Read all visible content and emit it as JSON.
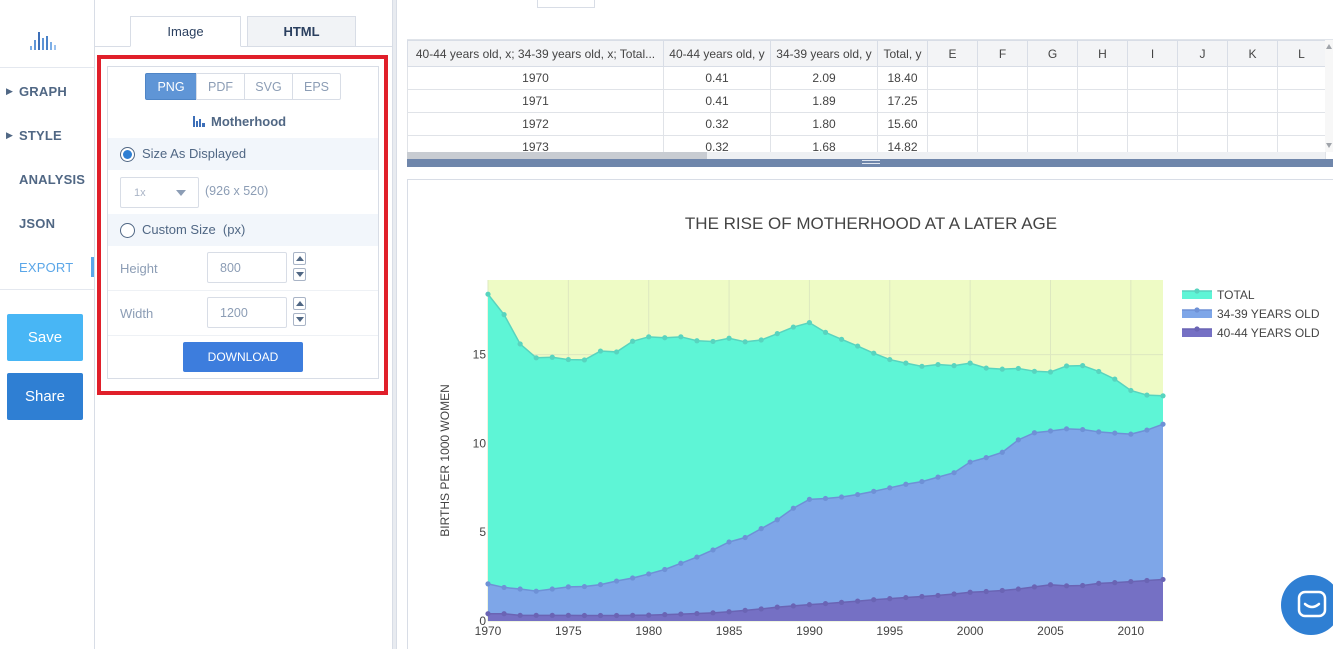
{
  "nav": {
    "items": [
      {
        "label": "GRAPH",
        "caret": "▶"
      },
      {
        "label": "STYLE",
        "caret": "▶"
      },
      {
        "label": "ANALYSIS"
      },
      {
        "label": "JSON"
      },
      {
        "label": "EXPORT"
      }
    ],
    "save_label": "Save",
    "share_label": "Share",
    "logo_icon": "bar-chart-logo-icon"
  },
  "export": {
    "tabs": [
      "Image",
      "HTML"
    ],
    "formats": [
      "PNG",
      "PDF",
      "SVG",
      "EPS"
    ],
    "selected_format": "PNG",
    "figure_name": "Motherhood",
    "size_as_displayed_label": "Size As Displayed",
    "scale_value": "1x",
    "display_dims": "(926 x 520)",
    "custom_size_label": "Custom Size  (px)",
    "height_label": "Height",
    "height_value": "800",
    "width_label": "Width",
    "width_value": "1200",
    "download_label": "DOWNLOAD",
    "highlight_color": "#e01f2a"
  },
  "grid": {
    "headers": [
      "40-44 years old, x; 34-39 years old, x; Total...",
      "40-44 years old, y",
      "34-39 years old, y",
      "Total, y",
      "E",
      "F",
      "G",
      "H",
      "I",
      "J",
      "K",
      "L"
    ],
    "rows": [
      [
        "1970",
        "0.41",
        "2.09",
        "18.40"
      ],
      [
        "1971",
        "0.41",
        "1.89",
        "17.25"
      ],
      [
        "1972",
        "0.32",
        "1.80",
        "15.60"
      ],
      [
        "1973",
        "0.32",
        "1.68",
        "14.82"
      ]
    ]
  },
  "chart_data": {
    "type": "area",
    "title": "THE RISE OF MOTHERHOOD AT A LATER AGE",
    "ylabel": "BIRTHS PER 1000 WOMEN",
    "xlabel": "",
    "xlim": [
      1970,
      2012
    ],
    "ylim": [
      0,
      19.2
    ],
    "x_ticks": [
      1970,
      1975,
      1980,
      1985,
      1990,
      1995,
      2000,
      2005,
      2010
    ],
    "y_ticks": [
      0,
      5,
      10,
      15
    ],
    "plot_bg": "#eefbc5",
    "legend_position": "top-right",
    "x": [
      1970,
      1971,
      1972,
      1973,
      1974,
      1975,
      1976,
      1977,
      1978,
      1979,
      1980,
      1981,
      1982,
      1983,
      1984,
      1985,
      1986,
      1987,
      1988,
      1989,
      1990,
      1991,
      1992,
      1993,
      1994,
      1995,
      1996,
      1997,
      1998,
      1999,
      2000,
      2001,
      2002,
      2003,
      2004,
      2005,
      2006,
      2007,
      2008,
      2009,
      2010,
      2011,
      2012
    ],
    "series": [
      {
        "name": "40-44 YEARS OLD",
        "color": "#7570c4",
        "values": [
          0.41,
          0.41,
          0.32,
          0.32,
          0.32,
          0.32,
          0.31,
          0.31,
          0.31,
          0.32,
          0.33,
          0.36,
          0.39,
          0.42,
          0.46,
          0.52,
          0.6,
          0.68,
          0.78,
          0.85,
          0.92,
          0.98,
          1.05,
          1.12,
          1.2,
          1.26,
          1.32,
          1.38,
          1.44,
          1.52,
          1.62,
          1.66,
          1.72,
          1.8,
          1.92,
          2.04,
          1.98,
          2.0,
          2.12,
          2.16,
          2.22,
          2.28,
          2.34
        ]
      },
      {
        "name": "34-39 YEARS OLD",
        "color": "#7ea6e8",
        "values": [
          2.09,
          1.89,
          1.8,
          1.68,
          1.8,
          1.92,
          1.94,
          2.05,
          2.25,
          2.42,
          2.65,
          2.9,
          3.25,
          3.6,
          4.0,
          4.45,
          4.7,
          5.2,
          5.7,
          6.35,
          6.85,
          6.9,
          6.98,
          7.12,
          7.3,
          7.5,
          7.7,
          7.85,
          8.1,
          8.35,
          8.95,
          9.2,
          9.5,
          10.2,
          10.6,
          10.7,
          10.82,
          10.78,
          10.65,
          10.58,
          10.52,
          10.75,
          11.08
        ]
      },
      {
        "name": "TOTAL",
        "color": "#5ef5d6",
        "values": [
          18.4,
          17.25,
          15.6,
          14.82,
          14.85,
          14.72,
          14.7,
          15.2,
          15.15,
          15.75,
          16.0,
          15.95,
          16.0,
          15.78,
          15.74,
          15.92,
          15.72,
          15.82,
          16.18,
          16.55,
          16.8,
          16.25,
          15.86,
          15.48,
          15.08,
          14.72,
          14.52,
          14.34,
          14.44,
          14.38,
          14.52,
          14.24,
          14.18,
          14.22,
          14.06,
          14.02,
          14.36,
          14.38,
          14.05,
          13.62,
          12.98,
          12.72,
          12.68
        ]
      }
    ]
  },
  "chat_icon": "chat-bubble-icon"
}
